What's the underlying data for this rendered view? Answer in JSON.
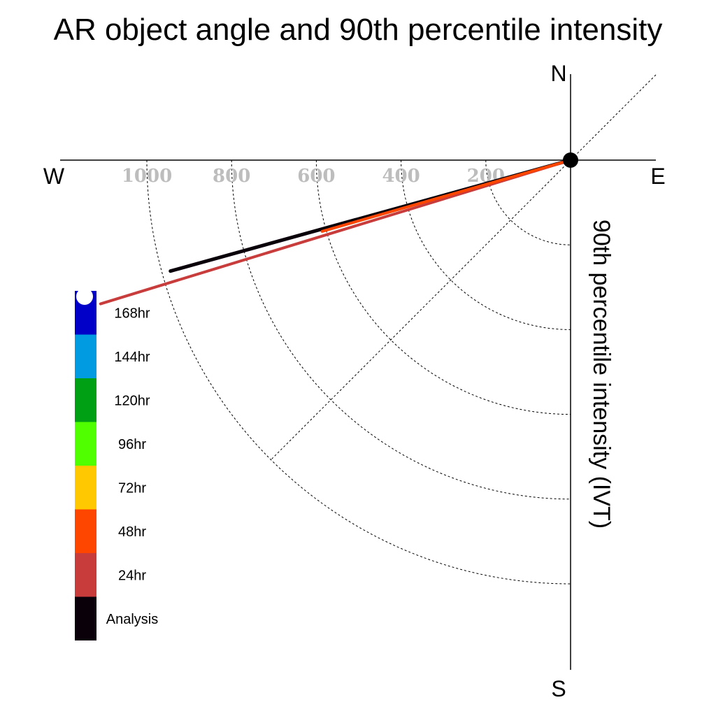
{
  "chart_data": {
    "type": "polar-quadrant",
    "title": "AR object angle and 90th percentile intensity",
    "ylabel": "90th percentile intensity (IVT)",
    "compass": {
      "north": "N",
      "south": "S",
      "east": "E",
      "west": "W"
    },
    "r_ticks": [
      200,
      400,
      600,
      800,
      1000
    ],
    "r_tick_labels": [
      "200",
      "400",
      "600",
      "800",
      "1000"
    ],
    "rlim": [
      0,
      1200
    ],
    "grid": true,
    "legend": {
      "placement": "left",
      "entries": [
        {
          "label": "168hr",
          "color": "#0000c8"
        },
        {
          "label": "144hr",
          "color": "#009be0"
        },
        {
          "label": "120hr",
          "color": "#00a014"
        },
        {
          "label": "96hr",
          "color": "#50ff00"
        },
        {
          "label": "72hr",
          "color": "#ffc800"
        },
        {
          "label": "48hr",
          "color": "#ff4600"
        },
        {
          "label": "24hr",
          "color": "#c83c3c"
        },
        {
          "label": "Analysis",
          "color": "#0a000a"
        }
      ]
    },
    "series": [
      {
        "name": "Analysis",
        "color": "#0a000a",
        "angle_deg_from_north": 254.5,
        "intensity": 980
      },
      {
        "name": "24hr",
        "color": "#c83c3c",
        "angle_deg_from_north": 253.0,
        "intensity": 1160
      },
      {
        "name": "48hr",
        "color": "#ff4600",
        "angle_deg_from_north": 254.0,
        "intensity": 610
      }
    ]
  }
}
